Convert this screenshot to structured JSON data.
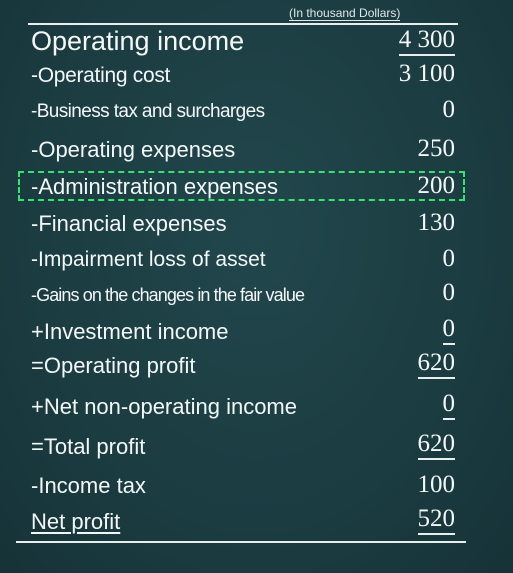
{
  "unit_note": "(In thousand Dollars)",
  "rows": [
    {
      "label": "Operating income",
      "value": "4 300"
    },
    {
      "label": "-Operating cost",
      "value": "3 100"
    },
    {
      "label": "-Business tax and surcharges",
      "value": "0"
    },
    {
      "label": "-Operating expenses",
      "value": "250"
    },
    {
      "label": "-Administration expenses",
      "value": "200"
    },
    {
      "label": "-Financial expenses",
      "value": "130"
    },
    {
      "label": "-Impairment loss of asset",
      "value": "0"
    },
    {
      "label": "-Gains on the changes in the fair value",
      "value": "0"
    },
    {
      "label": "+Investment income",
      "value": "0"
    },
    {
      "label": "=Operating profit",
      "value": "620"
    },
    {
      "label": "+Net non-operating income",
      "value": "0"
    },
    {
      "label": "=Total profit",
      "value": "620"
    },
    {
      "label": "-Income tax",
      "value": "100"
    },
    {
      "label": "Net profit",
      "value": "520"
    }
  ],
  "colors": {
    "background": "#1c3f44",
    "text": "#f4f7f7",
    "highlight_border": "#36e36d"
  }
}
